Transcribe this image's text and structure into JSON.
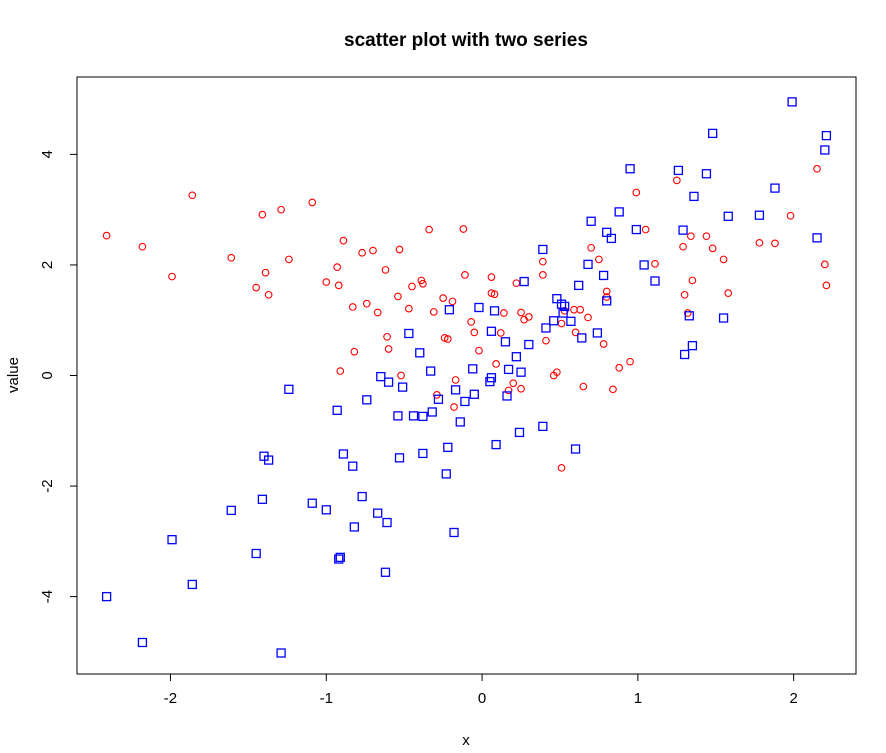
{
  "chart_data": {
    "type": "scatter",
    "title": "scatter plot with two series",
    "xlabel": "x",
    "ylabel": "value",
    "xlim": [
      -2.6,
      2.4
    ],
    "ylim": [
      -5.4,
      5.4
    ],
    "x_ticks": [
      -2,
      -1,
      0,
      1,
      2
    ],
    "x_tick_labels": [
      "-2",
      "-1",
      "0",
      "1",
      "2"
    ],
    "y_ticks": [
      -4,
      -2,
      0,
      2,
      4
    ],
    "y_tick_labels": [
      "-4",
      "-2",
      "0",
      "2",
      "4"
    ],
    "grid": false,
    "legend": "none",
    "series": [
      {
        "marker": "circle",
        "color": "#ff0000",
        "points": [
          [
            -2.41,
            2.53
          ],
          [
            -2.18,
            2.33
          ],
          [
            -1.99,
            1.79
          ],
          [
            -1.86,
            3.26
          ],
          [
            -1.61,
            2.13
          ],
          [
            -1.45,
            1.59
          ],
          [
            -1.41,
            2.91
          ],
          [
            -1.39,
            1.86
          ],
          [
            -1.37,
            1.46
          ],
          [
            -1.29,
            3.0
          ],
          [
            -1.24,
            2.1
          ],
          [
            -1.09,
            3.13
          ],
          [
            -1.0,
            1.69
          ],
          [
            -0.93,
            1.96
          ],
          [
            -0.92,
            1.63
          ],
          [
            -0.91,
            0.08
          ],
          [
            -0.89,
            2.44
          ],
          [
            -0.83,
            1.24
          ],
          [
            -0.82,
            0.43
          ],
          [
            -0.77,
            2.22
          ],
          [
            -0.74,
            1.3
          ],
          [
            -0.7,
            2.26
          ],
          [
            -0.67,
            1.14
          ],
          [
            -0.62,
            1.91
          ],
          [
            -0.61,
            0.7
          ],
          [
            -0.6,
            0.48
          ],
          [
            -0.54,
            1.43
          ],
          [
            -0.53,
            2.28
          ],
          [
            -0.52,
            0.0
          ],
          [
            -0.47,
            1.21
          ],
          [
            -0.45,
            1.61
          ],
          [
            -0.39,
            1.72
          ],
          [
            -0.38,
            1.66
          ],
          [
            -0.34,
            2.64
          ],
          [
            -0.31,
            1.15
          ],
          [
            -0.29,
            -0.35
          ],
          [
            -0.25,
            1.4
          ],
          [
            -0.24,
            0.68
          ],
          [
            -0.22,
            0.66
          ],
          [
            -0.19,
            1.34
          ],
          [
            -0.18,
            -0.57
          ],
          [
            -0.17,
            -0.08
          ],
          [
            -0.12,
            2.65
          ],
          [
            -0.11,
            1.82
          ],
          [
            -0.07,
            0.97
          ],
          [
            -0.05,
            0.78
          ],
          [
            -0.02,
            0.45
          ],
          [
            0.06,
            1.49
          ],
          [
            0.06,
            1.78
          ],
          [
            0.08,
            1.47
          ],
          [
            0.09,
            0.21
          ],
          [
            0.12,
            0.77
          ],
          [
            0.14,
            1.13
          ],
          [
            0.17,
            -0.27
          ],
          [
            0.2,
            -0.14
          ],
          [
            0.22,
            1.67
          ],
          [
            0.25,
            -0.24
          ],
          [
            0.25,
            1.14
          ],
          [
            0.27,
            1.01
          ],
          [
            0.3,
            1.06
          ],
          [
            0.39,
            1.82
          ],
          [
            0.39,
            2.06
          ],
          [
            0.41,
            0.63
          ],
          [
            0.46,
            0.0
          ],
          [
            0.48,
            0.06
          ],
          [
            0.51,
            -1.67
          ],
          [
            0.51,
            0.94
          ],
          [
            0.53,
            1.17
          ],
          [
            0.59,
            1.19
          ],
          [
            0.6,
            0.78
          ],
          [
            0.63,
            1.19
          ],
          [
            0.65,
            -0.2
          ],
          [
            0.68,
            1.05
          ],
          [
            0.7,
            2.31
          ],
          [
            0.75,
            2.1
          ],
          [
            0.78,
            0.57
          ],
          [
            0.8,
            1.52
          ],
          [
            0.8,
            1.42
          ],
          [
            0.84,
            -0.25
          ],
          [
            0.88,
            0.14
          ],
          [
            0.95,
            0.25
          ],
          [
            0.99,
            3.31
          ],
          [
            1.05,
            2.64
          ],
          [
            1.11,
            2.02
          ],
          [
            1.25,
            3.53
          ],
          [
            1.29,
            2.33
          ],
          [
            1.3,
            1.46
          ],
          [
            1.32,
            1.13
          ],
          [
            1.34,
            2.52
          ],
          [
            1.35,
            1.72
          ],
          [
            1.44,
            2.52
          ],
          [
            1.48,
            2.3
          ],
          [
            1.55,
            2.1
          ],
          [
            1.58,
            1.49
          ],
          [
            1.78,
            2.4
          ],
          [
            1.88,
            2.39
          ],
          [
            1.98,
            2.89
          ],
          [
            2.15,
            3.74
          ],
          [
            2.2,
            2.01
          ],
          [
            2.21,
            1.63
          ]
        ]
      },
      {
        "marker": "square",
        "color": "#0000ff",
        "points": [
          [
            -2.41,
            -4.0
          ],
          [
            -2.18,
            -4.83
          ],
          [
            -1.99,
            -2.97
          ],
          [
            -1.86,
            -3.78
          ],
          [
            -1.61,
            -2.44
          ],
          [
            -1.45,
            -3.22
          ],
          [
            -1.41,
            -2.24
          ],
          [
            -1.4,
            -1.46
          ],
          [
            -1.37,
            -1.53
          ],
          [
            -1.29,
            -5.02
          ],
          [
            -1.24,
            -0.25
          ],
          [
            -1.09,
            -2.31
          ],
          [
            -1.0,
            -2.43
          ],
          [
            -0.93,
            -0.63
          ],
          [
            -0.92,
            -3.32
          ],
          [
            -0.91,
            -3.29
          ],
          [
            -0.89,
            -1.42
          ],
          [
            -0.83,
            -1.64
          ],
          [
            -0.82,
            -2.74
          ],
          [
            -0.77,
            -2.19
          ],
          [
            -0.74,
            -0.44
          ],
          [
            -0.67,
            -2.49
          ],
          [
            -0.65,
            -0.02
          ],
          [
            -0.62,
            -3.56
          ],
          [
            -0.61,
            -2.66
          ],
          [
            -0.6,
            -0.12
          ],
          [
            -0.54,
            -0.73
          ],
          [
            -0.53,
            -1.49
          ],
          [
            -0.51,
            -0.21
          ],
          [
            -0.47,
            0.76
          ],
          [
            -0.44,
            -0.73
          ],
          [
            -0.4,
            0.41
          ],
          [
            -0.38,
            -1.41
          ],
          [
            -0.38,
            -0.74
          ],
          [
            -0.33,
            0.08
          ],
          [
            -0.32,
            -0.66
          ],
          [
            -0.28,
            -0.43
          ],
          [
            -0.23,
            -1.78
          ],
          [
            -0.22,
            -1.3
          ],
          [
            -0.21,
            1.19
          ],
          [
            -0.18,
            -2.84
          ],
          [
            -0.17,
            -0.26
          ],
          [
            -0.14,
            -0.84
          ],
          [
            -0.11,
            -0.47
          ],
          [
            -0.06,
            0.12
          ],
          [
            -0.05,
            -0.34
          ],
          [
            -0.02,
            1.23
          ],
          [
            0.05,
            -0.11
          ],
          [
            0.06,
            -0.04
          ],
          [
            0.06,
            0.8
          ],
          [
            0.08,
            1.17
          ],
          [
            0.09,
            -1.25
          ],
          [
            0.15,
            0.61
          ],
          [
            0.16,
            -0.37
          ],
          [
            0.17,
            0.11
          ],
          [
            0.22,
            0.34
          ],
          [
            0.24,
            -1.03
          ],
          [
            0.25,
            0.06
          ],
          [
            0.27,
            1.7
          ],
          [
            0.3,
            0.56
          ],
          [
            0.39,
            -0.92
          ],
          [
            0.39,
            2.28
          ],
          [
            0.41,
            0.86
          ],
          [
            0.46,
            0.99
          ],
          [
            0.48,
            1.39
          ],
          [
            0.51,
            1.29
          ],
          [
            0.52,
            1.13
          ],
          [
            0.53,
            1.25
          ],
          [
            0.57,
            0.98
          ],
          [
            0.6,
            -1.33
          ],
          [
            0.62,
            1.63
          ],
          [
            0.64,
            0.68
          ],
          [
            0.68,
            2.01
          ],
          [
            0.7,
            2.79
          ],
          [
            0.74,
            0.77
          ],
          [
            0.78,
            1.81
          ],
          [
            0.8,
            2.59
          ],
          [
            0.8,
            1.35
          ],
          [
            0.83,
            2.48
          ],
          [
            0.88,
            2.96
          ],
          [
            0.95,
            3.74
          ],
          [
            0.99,
            2.64
          ],
          [
            1.04,
            2.0
          ],
          [
            1.11,
            1.71
          ],
          [
            1.26,
            3.71
          ],
          [
            1.29,
            2.63
          ],
          [
            1.3,
            0.38
          ],
          [
            1.33,
            1.08
          ],
          [
            1.35,
            0.54
          ],
          [
            1.36,
            3.24
          ],
          [
            1.44,
            3.65
          ],
          [
            1.48,
            4.38
          ],
          [
            1.55,
            1.04
          ],
          [
            1.58,
            2.88
          ],
          [
            1.78,
            2.9
          ],
          [
            1.88,
            3.39
          ],
          [
            1.99,
            4.95
          ],
          [
            2.15,
            2.49
          ],
          [
            2.2,
            4.08
          ],
          [
            2.21,
            4.34
          ]
        ]
      }
    ]
  }
}
